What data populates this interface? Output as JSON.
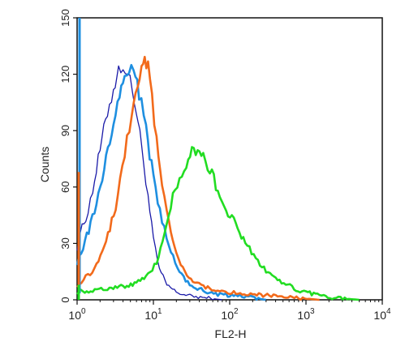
{
  "chart_data": {
    "type": "line",
    "xlabel": "FL2-H",
    "ylabel": "Counts",
    "x_scale": "log",
    "xlim": [
      1,
      10000
    ],
    "ylim": [
      0,
      150
    ],
    "grid": false,
    "x_ticks": [
      {
        "value": 1,
        "base": "10",
        "exp": "0"
      },
      {
        "value": 10,
        "base": "10",
        "exp": "1"
      },
      {
        "value": 100,
        "base": "10",
        "exp": "2"
      },
      {
        "value": 1000,
        "base": "10",
        "exp": "3"
      },
      {
        "value": 10000,
        "base": "10",
        "exp": "4"
      }
    ],
    "y_ticks": [
      "0",
      "30",
      "60",
      "90",
      "120",
      "150"
    ],
    "series": [
      {
        "color": "#1a1aa8",
        "points": [
          [
            1,
            28
          ],
          [
            1.1,
            36
          ],
          [
            1.3,
            43
          ],
          [
            1.6,
            58
          ],
          [
            2.0,
            80
          ],
          [
            2.5,
            100
          ],
          [
            3.0,
            112
          ],
          [
            3.5,
            122
          ],
          [
            4.0,
            125
          ],
          [
            4.6,
            120
          ],
          [
            5.3,
            112
          ],
          [
            6.0,
            100
          ],
          [
            7.0,
            82
          ],
          [
            8.5,
            55
          ],
          [
            10,
            32
          ],
          [
            12,
            16
          ],
          [
            15,
            8
          ],
          [
            20,
            4
          ],
          [
            30,
            2
          ],
          [
            50,
            1
          ],
          [
            80,
            0
          ]
        ]
      },
      {
        "color": "#1e8fe0",
        "points": [
          [
            1,
            20
          ],
          [
            1.2,
            28
          ],
          [
            1.5,
            40
          ],
          [
            1.9,
            55
          ],
          [
            2.4,
            75
          ],
          [
            3.0,
            95
          ],
          [
            3.6,
            110
          ],
          [
            4.2,
            118
          ],
          [
            4.8,
            123
          ],
          [
            5.5,
            120
          ],
          [
            6.5,
            110
          ],
          [
            8.0,
            90
          ],
          [
            10,
            65
          ],
          [
            13,
            42
          ],
          [
            17,
            25
          ],
          [
            22,
            14
          ],
          [
            30,
            8
          ],
          [
            45,
            5
          ],
          [
            70,
            3
          ],
          [
            120,
            2
          ],
          [
            200,
            1
          ],
          [
            300,
            0
          ]
        ]
      },
      {
        "color": "#f26a1b",
        "points": [
          [
            1,
            8
          ],
          [
            1.3,
            12
          ],
          [
            1.8,
            18
          ],
          [
            2.4,
            30
          ],
          [
            3.2,
            50
          ],
          [
            4.2,
            78
          ],
          [
            5.2,
            100
          ],
          [
            6.2,
            115
          ],
          [
            7.0,
            125
          ],
          [
            7.7,
            130
          ],
          [
            8.5,
            124
          ],
          [
            9.6,
            108
          ],
          [
            11,
            85
          ],
          [
            13,
            60
          ],
          [
            16,
            40
          ],
          [
            20,
            25
          ],
          [
            26,
            15
          ],
          [
            35,
            9
          ],
          [
            55,
            6
          ],
          [
            100,
            4
          ],
          [
            200,
            3
          ],
          [
            400,
            2
          ],
          [
            800,
            1
          ],
          [
            1500,
            0
          ]
        ]
      },
      {
        "color": "#22dd22",
        "points": [
          [
            1,
            4
          ],
          [
            1.5,
            5
          ],
          [
            2.5,
            6
          ],
          [
            4,
            7
          ],
          [
            6,
            9
          ],
          [
            8,
            12
          ],
          [
            11,
            20
          ],
          [
            14,
            35
          ],
          [
            18,
            55
          ],
          [
            22,
            66
          ],
          [
            27,
            73
          ],
          [
            32,
            78
          ],
          [
            38,
            79
          ],
          [
            45,
            76
          ],
          [
            55,
            70
          ],
          [
            70,
            58
          ],
          [
            90,
            48
          ],
          [
            120,
            40
          ],
          [
            160,
            30
          ],
          [
            220,
            22
          ],
          [
            300,
            16
          ],
          [
            450,
            10
          ],
          [
            700,
            6
          ],
          [
            1000,
            4
          ],
          [
            1500,
            2
          ],
          [
            2500,
            1
          ],
          [
            5000,
            0
          ]
        ]
      }
    ]
  }
}
